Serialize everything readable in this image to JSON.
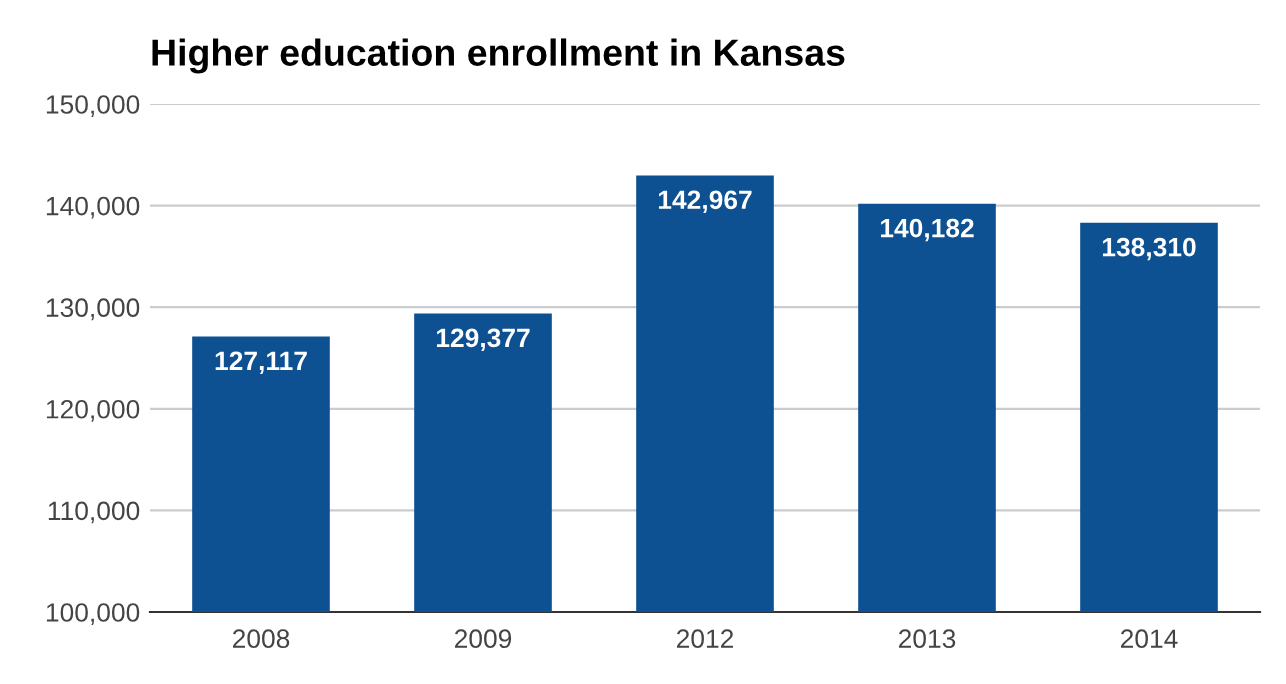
{
  "chart_data": {
    "type": "bar",
    "title": "Higher education enrollment in Kansas",
    "categories": [
      "2008",
      "2009",
      "2012",
      "2013",
      "2014"
    ],
    "values": [
      127117,
      129377,
      142967,
      140182,
      138310
    ],
    "color": "#0d5192",
    "ylim": [
      100000,
      150000
    ],
    "yticks": [
      {
        "value": 100000,
        "label": "100,000"
      },
      {
        "value": 110000,
        "label": "110,000"
      },
      {
        "value": 120000,
        "label": "120,000"
      },
      {
        "value": 130000,
        "label": "130,000"
      },
      {
        "value": 140000,
        "label": "140,000"
      },
      {
        "value": 150000,
        "label": "150,000"
      }
    ],
    "value_labels": [
      "127,117",
      "129,377",
      "142,967",
      "140,182",
      "138,310"
    ],
    "grid": "y",
    "legend": false
  }
}
